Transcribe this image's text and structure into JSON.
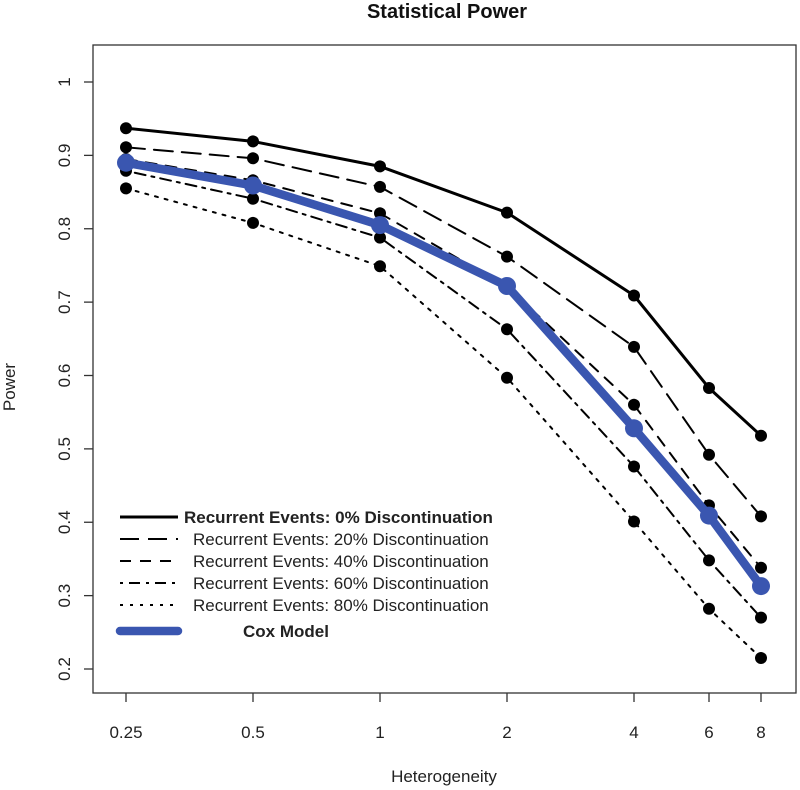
{
  "chart_data": {
    "type": "line",
    "title": "Statistical Power",
    "xlabel": "Heterogeneity",
    "ylabel": "Power",
    "x_scale": "log",
    "x": [
      0.25,
      0.5,
      1,
      2,
      4,
      6,
      8
    ],
    "x_tick_labels": [
      "0.25",
      "0.5",
      "1",
      "2",
      "4",
      "6",
      "8"
    ],
    "ylim": [
      0.2,
      1.0
    ],
    "y_ticks": [
      0.2,
      0.3,
      0.4,
      0.5,
      0.6,
      0.7,
      0.8,
      0.9,
      1.0
    ],
    "y_tick_labels": [
      "0.2",
      "0.3",
      "0.4",
      "0.5",
      "0.6",
      "0.7",
      "0.8",
      "0.9",
      "1"
    ],
    "grid": false,
    "legend_position": "bottom-left",
    "series": [
      {
        "name": "Recurrent Events: 0% Discontinuation",
        "values": [
          0.937,
          0.919,
          0.885,
          0.822,
          0.709,
          0.583,
          0.518
        ],
        "color": "#000000",
        "line_style": "solid",
        "bold": true
      },
      {
        "name": "Recurrent Events: 20% Discontinuation",
        "values": [
          0.911,
          0.896,
          0.857,
          0.762,
          0.639,
          0.492,
          0.408
        ],
        "color": "#000000",
        "line_style": "longdash",
        "bold": false
      },
      {
        "name": "Recurrent Events: 40% Discontinuation",
        "values": [
          0.895,
          0.866,
          0.821,
          0.721,
          0.56,
          0.423,
          0.338
        ],
        "color": "#000000",
        "line_style": "dashed",
        "bold": false
      },
      {
        "name": "Recurrent Events: 60% Discontinuation",
        "values": [
          0.879,
          0.841,
          0.788,
          0.663,
          0.476,
          0.348,
          0.27
        ],
        "color": "#000000",
        "line_style": "dotdash",
        "bold": false
      },
      {
        "name": "Recurrent Events: 80% Discontinuation",
        "values": [
          0.855,
          0.808,
          0.749,
          0.597,
          0.401,
          0.282,
          0.215
        ],
        "color": "#000000",
        "line_style": "dotted",
        "bold": false
      },
      {
        "name": "Cox Model",
        "values": [
          0.89,
          0.859,
          0.805,
          0.722,
          0.528,
          0.409,
          0.313
        ],
        "color": "#3a56b0",
        "line_style": "thick",
        "bold": true
      }
    ]
  }
}
